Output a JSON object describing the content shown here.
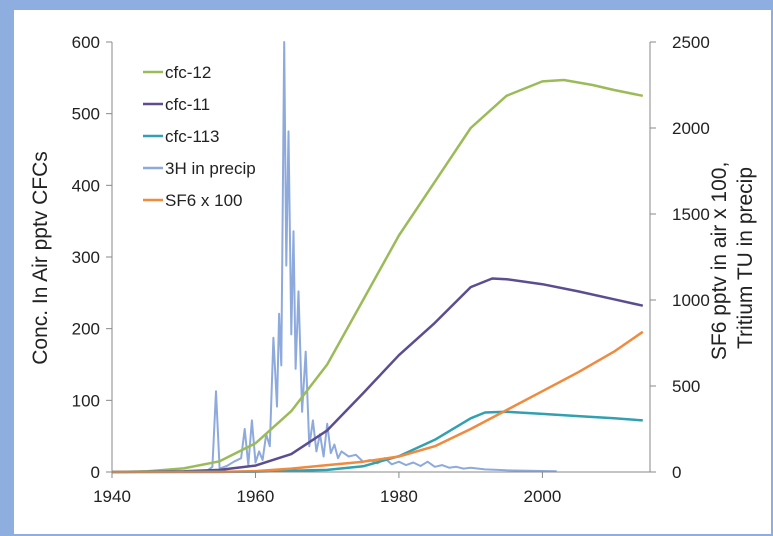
{
  "chart_data": {
    "type": "line",
    "title": "",
    "xlabel": "",
    "ylabel_left": "Conc. In Air pptv CFCs",
    "ylabel_right": [
      "SF6 pptv in air x 100,",
      "Tritium TU in precip"
    ],
    "xlim": [
      1940,
      2015
    ],
    "ylim_left": [
      0,
      600
    ],
    "ylim_right": [
      0,
      2500
    ],
    "x_ticks": [
      1940,
      1960,
      1980,
      2000
    ],
    "y_ticks_left": [
      0,
      100,
      200,
      300,
      400,
      500,
      600
    ],
    "y_ticks_right": [
      0,
      500,
      1000,
      1500,
      2000,
      2500
    ],
    "grid": false,
    "legend_position": "top-left",
    "series": [
      {
        "name": "cfc-12",
        "axis": "left",
        "color": "#9bbb59",
        "x": [
          1940,
          1945,
          1950,
          1955,
          1960,
          1965,
          1970,
          1975,
          1980,
          1985,
          1990,
          1995,
          2000,
          2003,
          2007,
          2010,
          2014
        ],
        "y": [
          0,
          1,
          5,
          15,
          40,
          85,
          150,
          240,
          330,
          405,
          480,
          525,
          545,
          547,
          540,
          533,
          525
        ]
      },
      {
        "name": "cfc-11",
        "axis": "left",
        "color": "#5b4d8f",
        "x": [
          1940,
          1950,
          1955,
          1960,
          1965,
          1970,
          1975,
          1980,
          1985,
          1990,
          1993,
          1995,
          2000,
          2005,
          2010,
          2014
        ],
        "y": [
          0,
          1,
          3,
          9,
          25,
          58,
          110,
          163,
          208,
          258,
          270,
          269,
          262,
          252,
          241,
          232
        ]
      },
      {
        "name": "cfc-113",
        "axis": "left",
        "color": "#31a0b0",
        "x": [
          1940,
          1960,
          1970,
          1975,
          1980,
          1985,
          1990,
          1992,
          1995,
          2000,
          2005,
          2010,
          2014
        ],
        "y": [
          0,
          0.5,
          3,
          8,
          22,
          45,
          75,
          83,
          84,
          81,
          78,
          75,
          72
        ]
      },
      {
        "name": "3H in precip",
        "axis": "right",
        "color": "#8eaadc",
        "x": [
          1940,
          1953,
          1954,
          1954.5,
          1955,
          1956,
          1957,
          1958,
          1958.5,
          1959,
          1959.5,
          1960,
          1960.5,
          1961,
          1961.5,
          1962,
          1962.5,
          1963,
          1963.3,
          1963.6,
          1964,
          1964.3,
          1964.6,
          1965,
          1965.3,
          1965.6,
          1966,
          1966.5,
          1967,
          1967.5,
          1968,
          1968.5,
          1969,
          1969.5,
          1970,
          1970.5,
          1971,
          1971.5,
          1972,
          1973,
          1974,
          1975,
          1976,
          1977,
          1978,
          1979,
          1980,
          1981,
          1982,
          1983,
          1984,
          1985,
          1986,
          1987,
          1988,
          1989,
          1990,
          1992,
          1995,
          2000,
          2002
        ],
        "y": [
          0,
          0,
          30,
          470,
          20,
          35,
          60,
          80,
          250,
          40,
          300,
          55,
          120,
          70,
          220,
          150,
          780,
          380,
          920,
          620,
          2500,
          1200,
          1980,
          800,
          1400,
          600,
          1050,
          350,
          700,
          150,
          300,
          120,
          220,
          90,
          280,
          110,
          160,
          80,
          120,
          90,
          100,
          60,
          70,
          50,
          80,
          45,
          60,
          40,
          55,
          35,
          60,
          30,
          40,
          25,
          30,
          20,
          25,
          15,
          10,
          6,
          4
        ]
      },
      {
        "name": "SF6 x 100",
        "axis": "right",
        "color": "#f08a3e",
        "x": [
          1940,
          1955,
          1960,
          1965,
          1970,
          1975,
          1980,
          1985,
          1990,
          1995,
          2000,
          2005,
          2010,
          2014
        ],
        "y": [
          0,
          0,
          5,
          20,
          40,
          60,
          90,
          150,
          250,
          360,
          470,
          580,
          700,
          815
        ]
      }
    ]
  }
}
